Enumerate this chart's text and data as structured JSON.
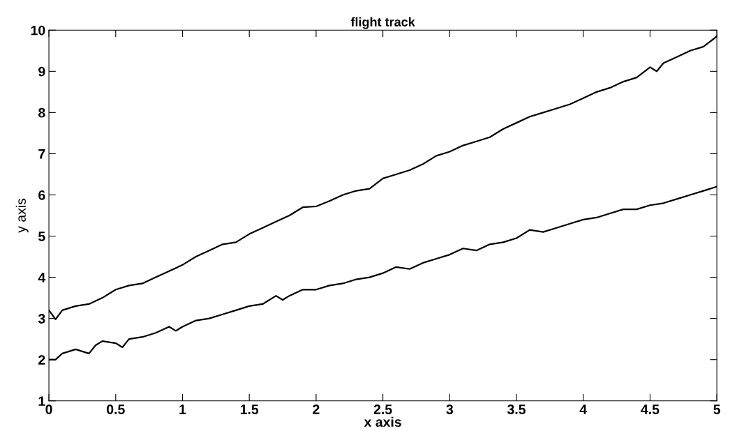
{
  "chart_data": {
    "type": "line",
    "title": "flight track",
    "xlabel": "x axis",
    "ylabel": "y axis",
    "xlim": [
      0,
      5
    ],
    "ylim": [
      1,
      10
    ],
    "xticks": [
      0,
      0.5,
      1,
      1.5,
      2,
      2.5,
      3,
      3.5,
      4,
      4.5,
      5
    ],
    "yticks": [
      1,
      2,
      3,
      4,
      5,
      6,
      7,
      8,
      9,
      10
    ],
    "grid": false,
    "marker": "none",
    "line_style": "solid",
    "series": [
      {
        "color": "#000000",
        "x": [
          0,
          0.05,
          0.1,
          0.2,
          0.3,
          0.4,
          0.5,
          0.6,
          0.7,
          0.8,
          0.9,
          1.0,
          1.1,
          1.2,
          1.3,
          1.4,
          1.5,
          1.6,
          1.7,
          1.8,
          1.9,
          2.0,
          2.1,
          2.2,
          2.3,
          2.4,
          2.5,
          2.6,
          2.7,
          2.8,
          2.9,
          3.0,
          3.1,
          3.2,
          3.3,
          3.4,
          3.5,
          3.6,
          3.7,
          3.8,
          3.9,
          4.0,
          4.1,
          4.2,
          4.3,
          4.4,
          4.5,
          4.55,
          4.6,
          4.7,
          4.8,
          4.9,
          5.0
        ],
        "values": [
          3.2,
          2.98,
          3.2,
          3.3,
          3.35,
          3.5,
          3.7,
          3.8,
          3.85,
          4.0,
          4.15,
          4.3,
          4.5,
          4.65,
          4.8,
          4.85,
          5.05,
          5.2,
          5.35,
          5.5,
          5.7,
          5.72,
          5.85,
          6.0,
          6.1,
          6.15,
          6.4,
          6.5,
          6.6,
          6.75,
          6.95,
          7.05,
          7.2,
          7.3,
          7.4,
          7.6,
          7.75,
          7.9,
          8.0,
          8.1,
          8.2,
          8.35,
          8.5,
          8.6,
          8.75,
          8.85,
          9.1,
          9.0,
          9.2,
          9.35,
          9.5,
          9.6,
          9.85
        ]
      },
      {
        "color": "#000000",
        "x": [
          0,
          0.05,
          0.1,
          0.2,
          0.3,
          0.35,
          0.4,
          0.5,
          0.55,
          0.6,
          0.7,
          0.8,
          0.9,
          0.95,
          1.0,
          1.1,
          1.2,
          1.3,
          1.4,
          1.5,
          1.6,
          1.7,
          1.75,
          1.8,
          1.9,
          2.0,
          2.1,
          2.2,
          2.3,
          2.4,
          2.5,
          2.6,
          2.7,
          2.8,
          2.9,
          3.0,
          3.1,
          3.2,
          3.3,
          3.4,
          3.5,
          3.6,
          3.7,
          3.8,
          3.9,
          4.0,
          4.1,
          4.2,
          4.3,
          4.4,
          4.5,
          4.6,
          4.7,
          4.8,
          4.9,
          5.0
        ],
        "values": [
          2.0,
          2.0,
          2.15,
          2.25,
          2.15,
          2.35,
          2.45,
          2.4,
          2.3,
          2.5,
          2.55,
          2.65,
          2.8,
          2.7,
          2.8,
          2.95,
          3.0,
          3.1,
          3.2,
          3.3,
          3.35,
          3.55,
          3.45,
          3.55,
          3.7,
          3.7,
          3.8,
          3.85,
          3.95,
          4.0,
          4.1,
          4.25,
          4.2,
          4.35,
          4.45,
          4.55,
          4.7,
          4.65,
          4.8,
          4.85,
          4.95,
          5.15,
          5.1,
          5.2,
          5.3,
          5.4,
          5.45,
          5.55,
          5.65,
          5.65,
          5.75,
          5.8,
          5.9,
          6.0,
          6.1,
          6.2
        ]
      }
    ]
  }
}
